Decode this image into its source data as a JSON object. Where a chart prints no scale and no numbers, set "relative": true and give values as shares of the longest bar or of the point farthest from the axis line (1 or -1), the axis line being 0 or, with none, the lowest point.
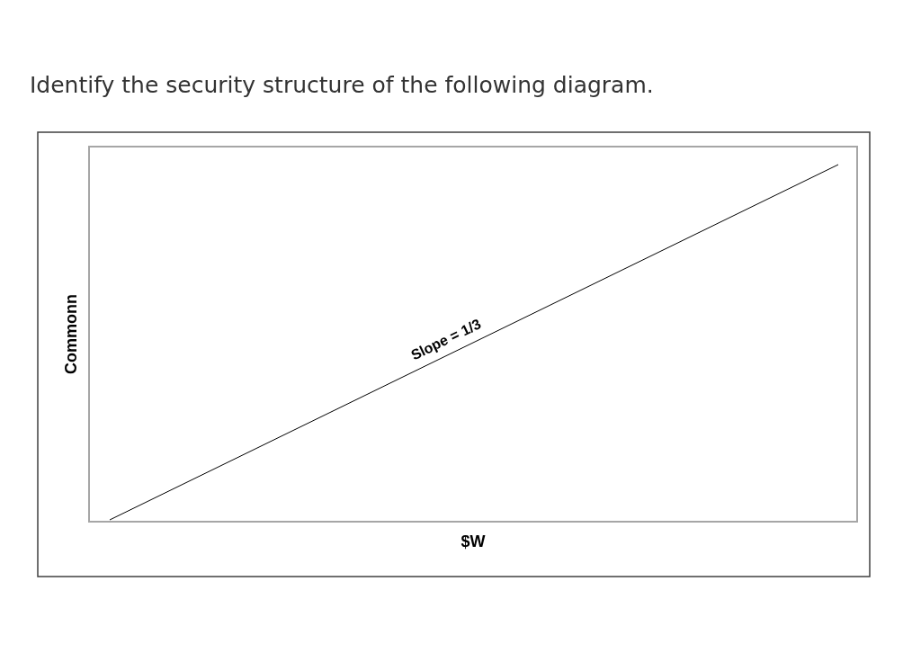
{
  "chart_data": {
    "type": "line",
    "title": "Identify the security structure of the following diagram.",
    "xlabel": "$W",
    "ylabel": "Commonn",
    "categories": [
      null,
      null
    ],
    "relative": true,
    "series": [
      {
        "color": "#000000",
        "values": [
          0,
          1
        ]
      }
    ],
    "annotations": [
      "Slope = 1/3"
    ],
    "tick_labels": false
  }
}
